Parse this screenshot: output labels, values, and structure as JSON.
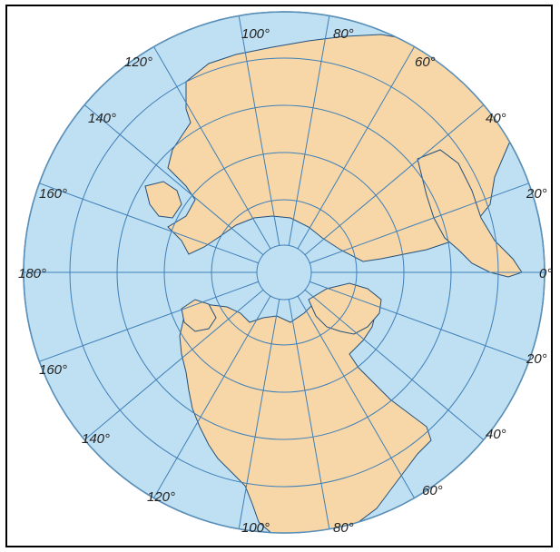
{
  "map": {
    "projection": "polar-azimuthal",
    "colors": {
      "ocean": "#bfe0f2",
      "land": "#f7d7a8",
      "graticule": "#3f7fb8",
      "coast": "#24507a",
      "frame": "#000000"
    },
    "longitude_labels": {
      "top": [
        "120°",
        "100°",
        "80°",
        "60°",
        "40°",
        "20°"
      ],
      "left": [
        "140°",
        "160°",
        "180°"
      ],
      "right": [
        "0°"
      ],
      "bottom": [
        "160°",
        "140°",
        "120°",
        "100°",
        "80°",
        "60°",
        "40°",
        "20°"
      ]
    }
  }
}
